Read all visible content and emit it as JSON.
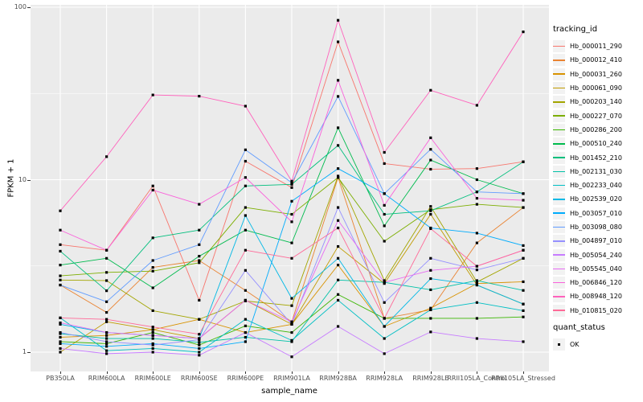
{
  "figure": {
    "background": "#FFFFFF",
    "panel_background": "#EBEBEB",
    "gridline_color": "#FFFFFF",
    "axis_text_color": "#4D4D4D",
    "marker_color": "#000000"
  },
  "chart_data": {
    "type": "line",
    "title": "",
    "xlabel": "sample_name",
    "ylabel": "FPKM + 1",
    "y_scale": "log10",
    "ylim": [
      0.93,
      110
    ],
    "grid": "on",
    "legend_position": "right",
    "y_ticks": [
      {
        "label": "1",
        "value": 1
      },
      {
        "label": "10",
        "value": 10
      },
      {
        "label": "100",
        "value": 100
      }
    ],
    "y_minor_ticks": [
      3.162,
      31.62
    ],
    "categories": [
      "PB350LA",
      "RRIM600LA",
      "RRIM600LE",
      "RRIM600SE",
      "RRIM600PE",
      "RRIM901LA",
      "RRIM928BA",
      "RRIM928LA",
      "RRIM928LE",
      "RRII105LA_Control",
      "RRII105LA_Stressed"
    ],
    "legend": {
      "series_title": "tracking_id",
      "status_title": "quant_status",
      "status_items": [
        {
          "label": "OK"
        }
      ]
    },
    "series": [
      {
        "name": "Hb_000011_290",
        "color": "#F8766D",
        "values": [
          4.2,
          3.9,
          9.2,
          2.0,
          12.8,
          9.0,
          63,
          12.4,
          11.5,
          11.6,
          12.7
        ]
      },
      {
        "name": "Hb_000012_410",
        "color": "#EA8331",
        "values": [
          2.45,
          1.7,
          3.1,
          3.4,
          2.28,
          1.5,
          10.3,
          1.57,
          1.76,
          4.3,
          6.9
        ]
      },
      {
        "name": "Hb_000031_260",
        "color": "#D89200",
        "values": [
          1.22,
          1.25,
          1.35,
          1.55,
          1.3,
          1.45,
          3.2,
          1.41,
          1.8,
          2.5,
          2.56
        ]
      },
      {
        "name": "Hb_000061_090",
        "color": "#C09B00",
        "values": [
          1.0,
          1.5,
          1.35,
          1.2,
          2.0,
          1.45,
          4.1,
          2.5,
          6.3,
          2.45,
          1.9
        ]
      },
      {
        "name": "Hb_000203_140",
        "color": "#A3A500",
        "values": [
          2.62,
          2.6,
          1.74,
          1.55,
          1.98,
          1.86,
          10.5,
          2.6,
          7.0,
          2.55,
          3.5
        ]
      },
      {
        "name": "Hb_000227_070",
        "color": "#7CAE00",
        "values": [
          2.77,
          2.9,
          2.95,
          3.3,
          6.9,
          6.3,
          10.3,
          4.4,
          6.7,
          7.2,
          6.9
        ]
      },
      {
        "name": "Hb_000286_200",
        "color": "#39B600",
        "values": [
          1.15,
          1.12,
          1.3,
          1.1,
          1.42,
          1.3,
          2.16,
          1.57,
          1.57,
          1.57,
          1.6
        ]
      },
      {
        "name": "Hb_000510_240",
        "color": "#00BB4E",
        "values": [
          3.2,
          3.5,
          2.36,
          3.6,
          5.1,
          4.3,
          20,
          5.4,
          13,
          10,
          8.3
        ]
      },
      {
        "name": "Hb_001452_210",
        "color": "#00BF7D",
        "values": [
          3.85,
          2.27,
          4.6,
          5.1,
          9.2,
          9.4,
          15.8,
          6.3,
          6.6,
          8.5,
          12.7
        ]
      },
      {
        "name": "Hb_002131_030",
        "color": "#00C1A7",
        "values": [
          1.28,
          1.2,
          1.2,
          1.14,
          1.22,
          1.15,
          2.62,
          2.54,
          2.3,
          2.6,
          2.28
        ]
      },
      {
        "name": "Hb_002233_040",
        "color": "#00BFC4",
        "values": [
          1.58,
          1.02,
          1.05,
          1.0,
          1.55,
          1.17,
          2.0,
          1.2,
          1.76,
          1.94,
          1.74
        ]
      },
      {
        "name": "Hb_002539_020",
        "color": "#00B8E5",
        "values": [
          1.45,
          1.3,
          1.25,
          1.2,
          6.2,
          2.05,
          3.5,
          1.41,
          2.67,
          2.45,
          1.9
        ]
      },
      {
        "name": "Hb_003057_010",
        "color": "#00ACFC",
        "values": [
          1.12,
          1.08,
          1.12,
          1.05,
          1.15,
          7.5,
          11.6,
          8.3,
          5.25,
          4.9,
          4.15
        ]
      },
      {
        "name": "Hb_003098_080",
        "color": "#619CFF",
        "values": [
          2.45,
          1.96,
          3.4,
          4.2,
          14.9,
          9.6,
          30.4,
          8.3,
          15,
          8.5,
          8.3
        ]
      },
      {
        "name": "Hb_004897_010",
        "color": "#9590FF",
        "values": [
          1.3,
          1.15,
          1.1,
          1.18,
          2.98,
          1.45,
          6.9,
          1.94,
          3.5,
          3.0,
          3.5
        ]
      },
      {
        "name": "Hb_005054_240",
        "color": "#C77CFF",
        "values": [
          1.05,
          0.98,
          1.0,
          0.96,
          1.3,
          0.94,
          1.41,
          0.98,
          1.31,
          1.2,
          1.15
        ]
      },
      {
        "name": "Hb_005545_040",
        "color": "#E76BF3",
        "values": [
          1.48,
          1.3,
          1.25,
          1.2,
          2.0,
          1.5,
          5.8,
          2.54,
          2.98,
          3.15,
          3.9
        ]
      },
      {
        "name": "Hb_006846_120",
        "color": "#FA62DB",
        "values": [
          5.1,
          3.9,
          8.7,
          7.2,
          10.3,
          5.7,
          37.7,
          7.1,
          17.5,
          7.8,
          7.6
        ]
      },
      {
        "name": "Hb_008948_120",
        "color": "#FF62BC",
        "values": [
          6.6,
          13.6,
          31,
          30.5,
          26.7,
          9.8,
          84,
          14.4,
          33,
          27,
          72
        ]
      },
      {
        "name": "Hb_010815_020",
        "color": "#FF6A98",
        "values": [
          1.58,
          1.55,
          1.4,
          1.27,
          3.9,
          3.5,
          5.25,
          1.57,
          5.2,
          3.15,
          3.9
        ]
      }
    ]
  }
}
